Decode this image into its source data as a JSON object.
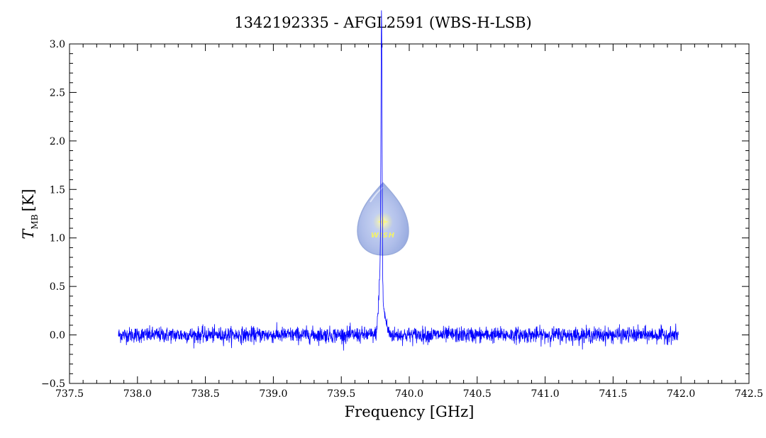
{
  "chart_data": {
    "type": "line",
    "title": "1342192335 - AFGL2591 (WBS-H-LSB)",
    "xlabel": "Frequency [GHz]",
    "ylabel_main": "T",
    "ylabel_sub": "MB",
    "ylabel_unit": "[K]",
    "xlim": [
      737.5,
      742.5
    ],
    "ylim": [
      -0.5,
      3.0
    ],
    "xticks": [
      "737.5",
      "738.0",
      "738.5",
      "739.0",
      "739.5",
      "740.0",
      "740.5",
      "741.0",
      "741.5",
      "742.0",
      "742.5"
    ],
    "yticks": [
      "−0.5",
      "0.0",
      "0.5",
      "1.0",
      "1.5",
      "2.0",
      "2.5",
      "3.0"
    ],
    "grid": false,
    "legend": "none",
    "series_color": "#0000ff",
    "x_start": 737.86,
    "x_end": 741.98,
    "noise_rms": 0.04,
    "features": [
      {
        "center": 739.796,
        "peak": 2.76,
        "width": 0.004
      },
      {
        "center": 739.787,
        "peak": 0.55,
        "width": 0.012
      },
      {
        "center": 739.81,
        "peak": 0.22,
        "width": 0.02
      }
    ]
  },
  "logo": {
    "text": "WISH",
    "colors": {
      "drop": "#a9b9e8",
      "drop_edge": "#7f95d6",
      "star": "#f4f27a"
    }
  }
}
